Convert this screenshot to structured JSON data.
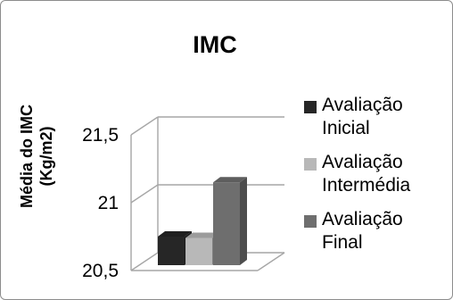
{
  "chart_data": {
    "type": "bar",
    "title": "IMC",
    "ylabel_lines": [
      "Média do IMC",
      "(Kg/m2)"
    ],
    "yticks": [
      "21,5",
      "21",
      "20,5"
    ],
    "ytick_values": [
      21.5,
      21,
      20.5
    ],
    "ylim": [
      20.5,
      21.5
    ],
    "series": [
      {
        "name": "Avaliação\nInicial",
        "value": 20.75,
        "color": "#262626"
      },
      {
        "name": "Avaliação\nIntermédia",
        "value": 20.74,
        "color": "#b8b8b8"
      },
      {
        "name": "Avaliação\nFinal",
        "value": 21.15,
        "color": "#6e6e6e"
      }
    ],
    "grid": true,
    "legend_position": "right",
    "three_d": true
  }
}
